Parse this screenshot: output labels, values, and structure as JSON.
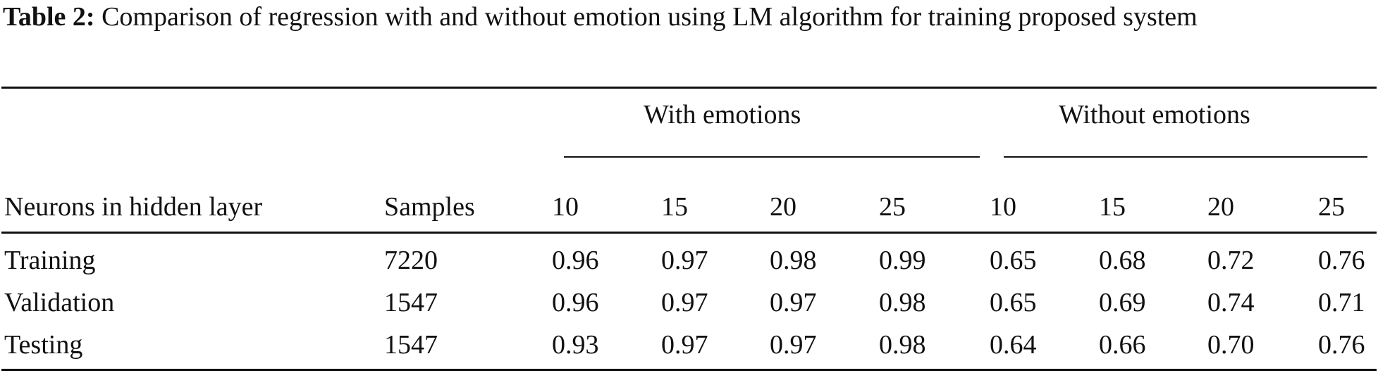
{
  "caption": {
    "label": "Table 2:",
    "text": "Comparison of regression with and without emotion using LM algorithm for training proposed system"
  },
  "table": {
    "groups": [
      "With emotions",
      "Without emotions"
    ],
    "headers": [
      "Neurons in hidden layer",
      "Samples",
      "10",
      "15",
      "20",
      "25",
      "10",
      "15",
      "20",
      "25"
    ],
    "rows": [
      [
        "Training",
        "7220",
        "0.96",
        "0.97",
        "0.98",
        "0.99",
        "0.65",
        "0.68",
        "0.72",
        "0.76"
      ],
      [
        "Validation",
        "1547",
        "0.96",
        "0.97",
        "0.97",
        "0.98",
        "0.65",
        "0.69",
        "0.74",
        "0.71"
      ],
      [
        "Testing",
        "1547",
        "0.93",
        "0.97",
        "0.97",
        "0.98",
        "0.64",
        "0.66",
        "0.70",
        "0.76"
      ]
    ]
  }
}
